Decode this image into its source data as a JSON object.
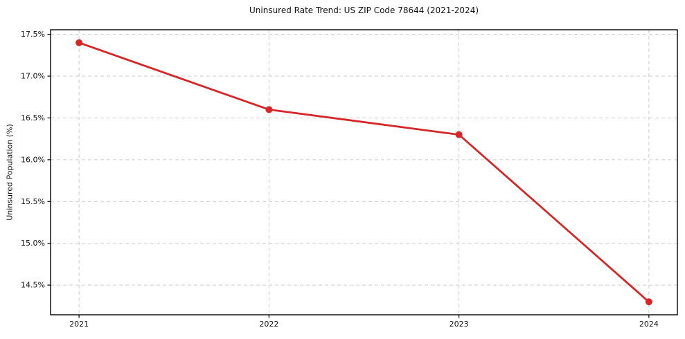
{
  "figure": {
    "background": "#ffffff"
  },
  "chart_data": {
    "type": "line",
    "title": "Uninsured Rate Trend: US ZIP Code 78644 (2021-2024)",
    "xlabel": "",
    "ylabel": "Uninsured Population (%)",
    "x": [
      2021,
      2022,
      2023,
      2024
    ],
    "values": [
      17.4,
      16.6,
      16.3,
      14.3
    ],
    "xlim": [
      2020.85,
      2024.15
    ],
    "ylim": [
      14.145,
      17.555
    ],
    "xticks": [
      2021,
      2022,
      2023,
      2024
    ],
    "xtick_labels": [
      "2021",
      "2022",
      "2023",
      "2024"
    ],
    "yticks": [
      14.5,
      15.0,
      15.5,
      16.0,
      16.5,
      17.0,
      17.5
    ],
    "ytick_labels": [
      "14.5%",
      "15.0%",
      "15.5%",
      "16.0%",
      "16.5%",
      "17.0%",
      "17.5%"
    ],
    "grid": true,
    "grid_style": "dashed",
    "grid_color": "#cccccc",
    "legend": false,
    "line_color": "#d62728",
    "marker": "circle",
    "spine_color": "#000000",
    "text_color": "#111111"
  }
}
